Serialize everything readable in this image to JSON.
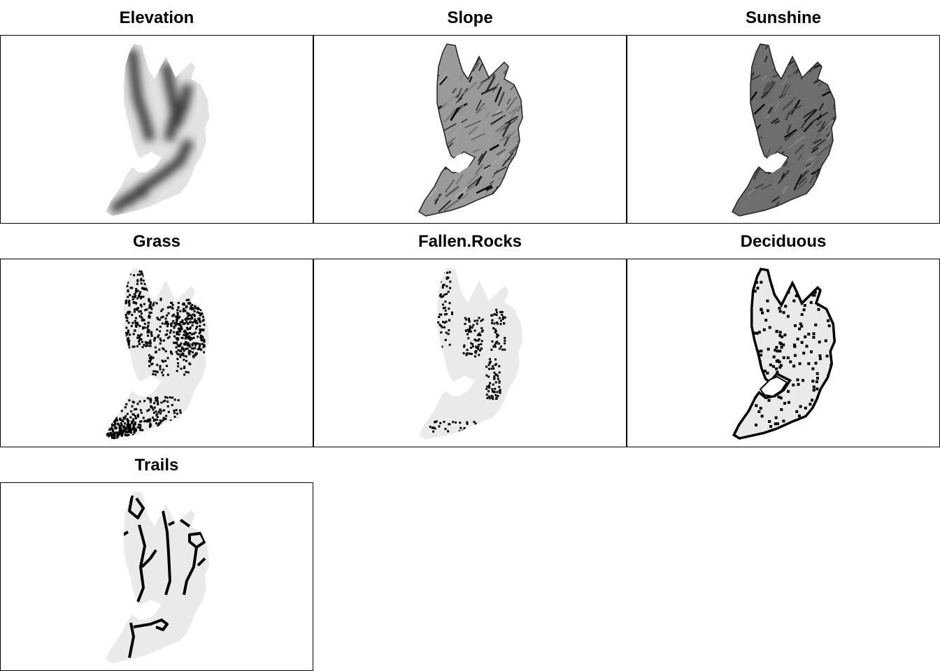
{
  "panels": [
    {
      "id": "elevation",
      "title": "Elevation",
      "style": "gradient"
    },
    {
      "id": "slope",
      "title": "Slope",
      "style": "texture"
    },
    {
      "id": "sunshine",
      "title": "Sunshine",
      "style": "texture-dark"
    },
    {
      "id": "grass",
      "title": "Grass",
      "style": "points"
    },
    {
      "id": "fallen-rocks",
      "title": "Fallen.Rocks",
      "style": "points-sparse"
    },
    {
      "id": "deciduous",
      "title": "Deciduous",
      "style": "outline"
    },
    {
      "id": "trails",
      "title": "Trails",
      "style": "lines"
    }
  ],
  "colors": {
    "frame": "#000000",
    "background": "#ffffff",
    "land_light": "#eaeaea",
    "ink": "#000000"
  }
}
